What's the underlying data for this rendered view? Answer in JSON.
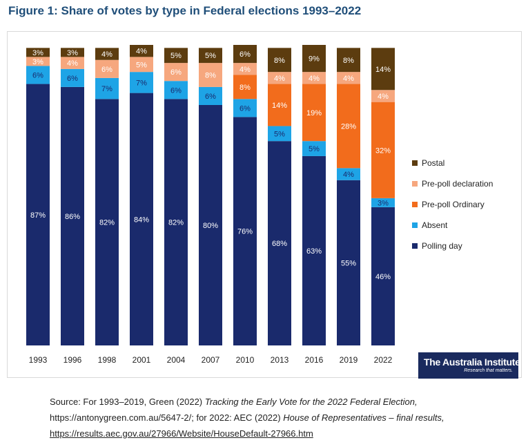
{
  "figure": {
    "title": "Figure 1: Share of votes by type in Federal elections 1993–2022"
  },
  "logo": {
    "name": "The Australia Institute",
    "tagline": "Research that matters."
  },
  "source": {
    "part1": "Source: For 1993–2019, Green (2022) ",
    "title1": "Tracking the Early Vote for the 2022 Federal Election,",
    "url1": "https://antonygreen.com.au/5647-2/; ",
    "part2": "for 2022: AEC (2022) ",
    "title2": "House of Representatives – final results,",
    "url2": "https://results.aec.gov.au/27966/Website/HouseDefault-27966.htm"
  },
  "chart_data": {
    "type": "bar",
    "stacked": true,
    "percent_stacked": true,
    "categories": [
      "1993",
      "1996",
      "1998",
      "2001",
      "2004",
      "2007",
      "2010",
      "2013",
      "2016",
      "2019",
      "2022"
    ],
    "series": [
      {
        "name": "Polling day",
        "color": "#1a2a6c",
        "values": [
          87,
          86,
          82,
          84,
          82,
          80,
          76,
          68,
          63,
          55,
          46
        ],
        "labels": [
          "87%",
          "86%",
          "82%",
          "84%",
          "82%",
          "80%",
          "76%",
          "68%",
          "63%",
          "55%",
          "46%"
        ],
        "label_color": "#ffffff"
      },
      {
        "name": "Absent",
        "color": "#1ea4e6",
        "values": [
          6,
          6,
          7,
          7,
          6,
          6,
          6,
          5,
          5,
          4,
          3
        ],
        "labels": [
          "6%",
          "6%",
          "7%",
          "7%",
          "6%",
          "6%",
          "6%",
          "5%",
          "5%",
          "4%",
          "3%"
        ],
        "label_color": "#1a2a6c"
      },
      {
        "name": "Pre-poll Ordinary",
        "color": "#f26c1c",
        "values": [
          0,
          0,
          0,
          0,
          0,
          0,
          8,
          14,
          19,
          28,
          32
        ],
        "labels": [
          "",
          "",
          "",
          "",
          "",
          "",
          "8%",
          "14%",
          "19%",
          "28%",
          "32%"
        ],
        "label_color": "#ffffff"
      },
      {
        "name": "Pre-poll declaration",
        "color": "#f6a77e",
        "values": [
          3,
          4,
          6,
          5,
          6,
          8,
          4,
          4,
          4,
          4,
          4
        ],
        "labels": [
          "3%",
          "4%",
          "6%",
          "5%",
          "6%",
          "8%",
          "4%",
          "4%",
          "4%",
          "4%",
          "4%"
        ],
        "label_color": "#ffffff"
      },
      {
        "name": "Postal",
        "color": "#5c3c0f",
        "values": [
          3,
          3,
          4,
          4,
          5,
          5,
          6,
          8,
          9,
          8,
          14
        ],
        "labels": [
          "3%",
          "3%",
          "4%",
          "4%",
          "5%",
          "5%",
          "6%",
          "8%",
          "9%",
          "8%",
          "14%"
        ],
        "label_color": "#ffffff"
      }
    ],
    "legend_order": [
      "Postal",
      "Pre-poll declaration",
      "Pre-poll Ordinary",
      "Absent",
      "Polling day"
    ],
    "legend_position": "right",
    "ylim": [
      0,
      100
    ],
    "grid": false,
    "xlabel": "",
    "ylabel": ""
  }
}
